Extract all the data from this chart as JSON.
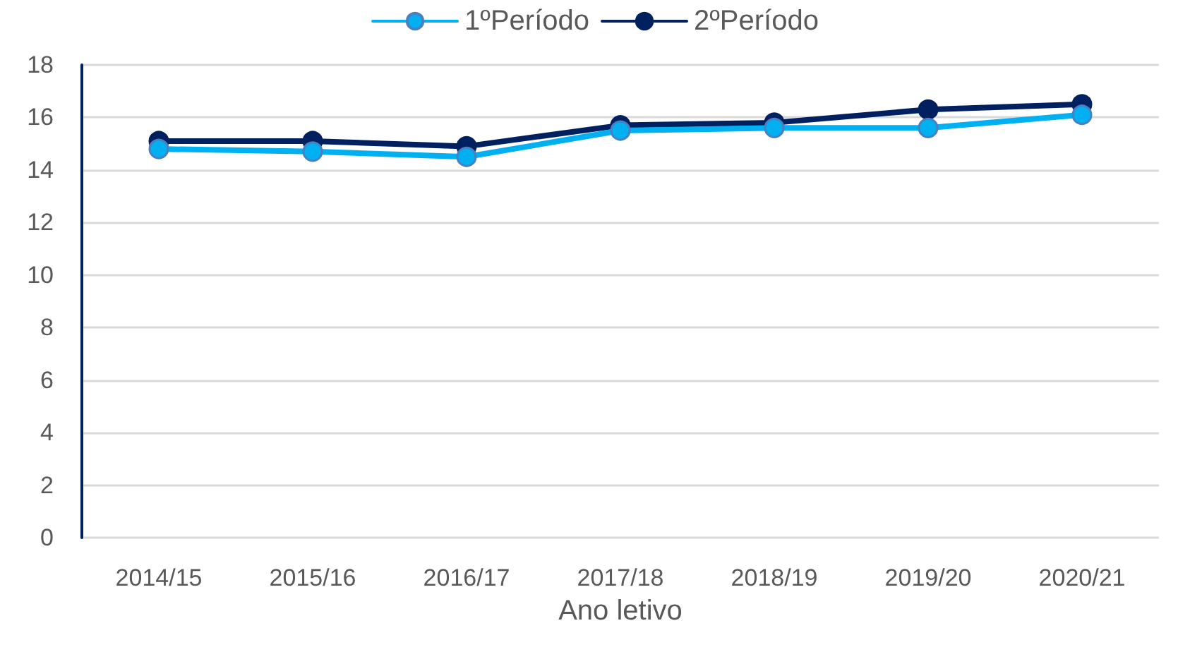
{
  "chart_data": {
    "type": "line",
    "xlabel": "Ano letivo",
    "categories": [
      "2014/15",
      "2015/16",
      "2016/17",
      "2017/18",
      "2018/19",
      "2019/20",
      "2020/21"
    ],
    "series": [
      {
        "name": "1ºPeríodo",
        "color": "#00b0f0",
        "values": [
          14.8,
          14.7,
          14.5,
          15.5,
          15.6,
          15.6,
          16.1
        ]
      },
      {
        "name": "2ºPeríodo",
        "color": "#002060",
        "values": [
          15.1,
          15.1,
          14.9,
          15.7,
          15.8,
          16.3,
          16.5
        ]
      }
    ],
    "ylim": [
      0,
      18
    ],
    "yticks": [
      0,
      2,
      4,
      6,
      8,
      10,
      12,
      14,
      16,
      18
    ],
    "grid": "y",
    "legend": "top",
    "marker": "circle",
    "line_style": "solid"
  }
}
